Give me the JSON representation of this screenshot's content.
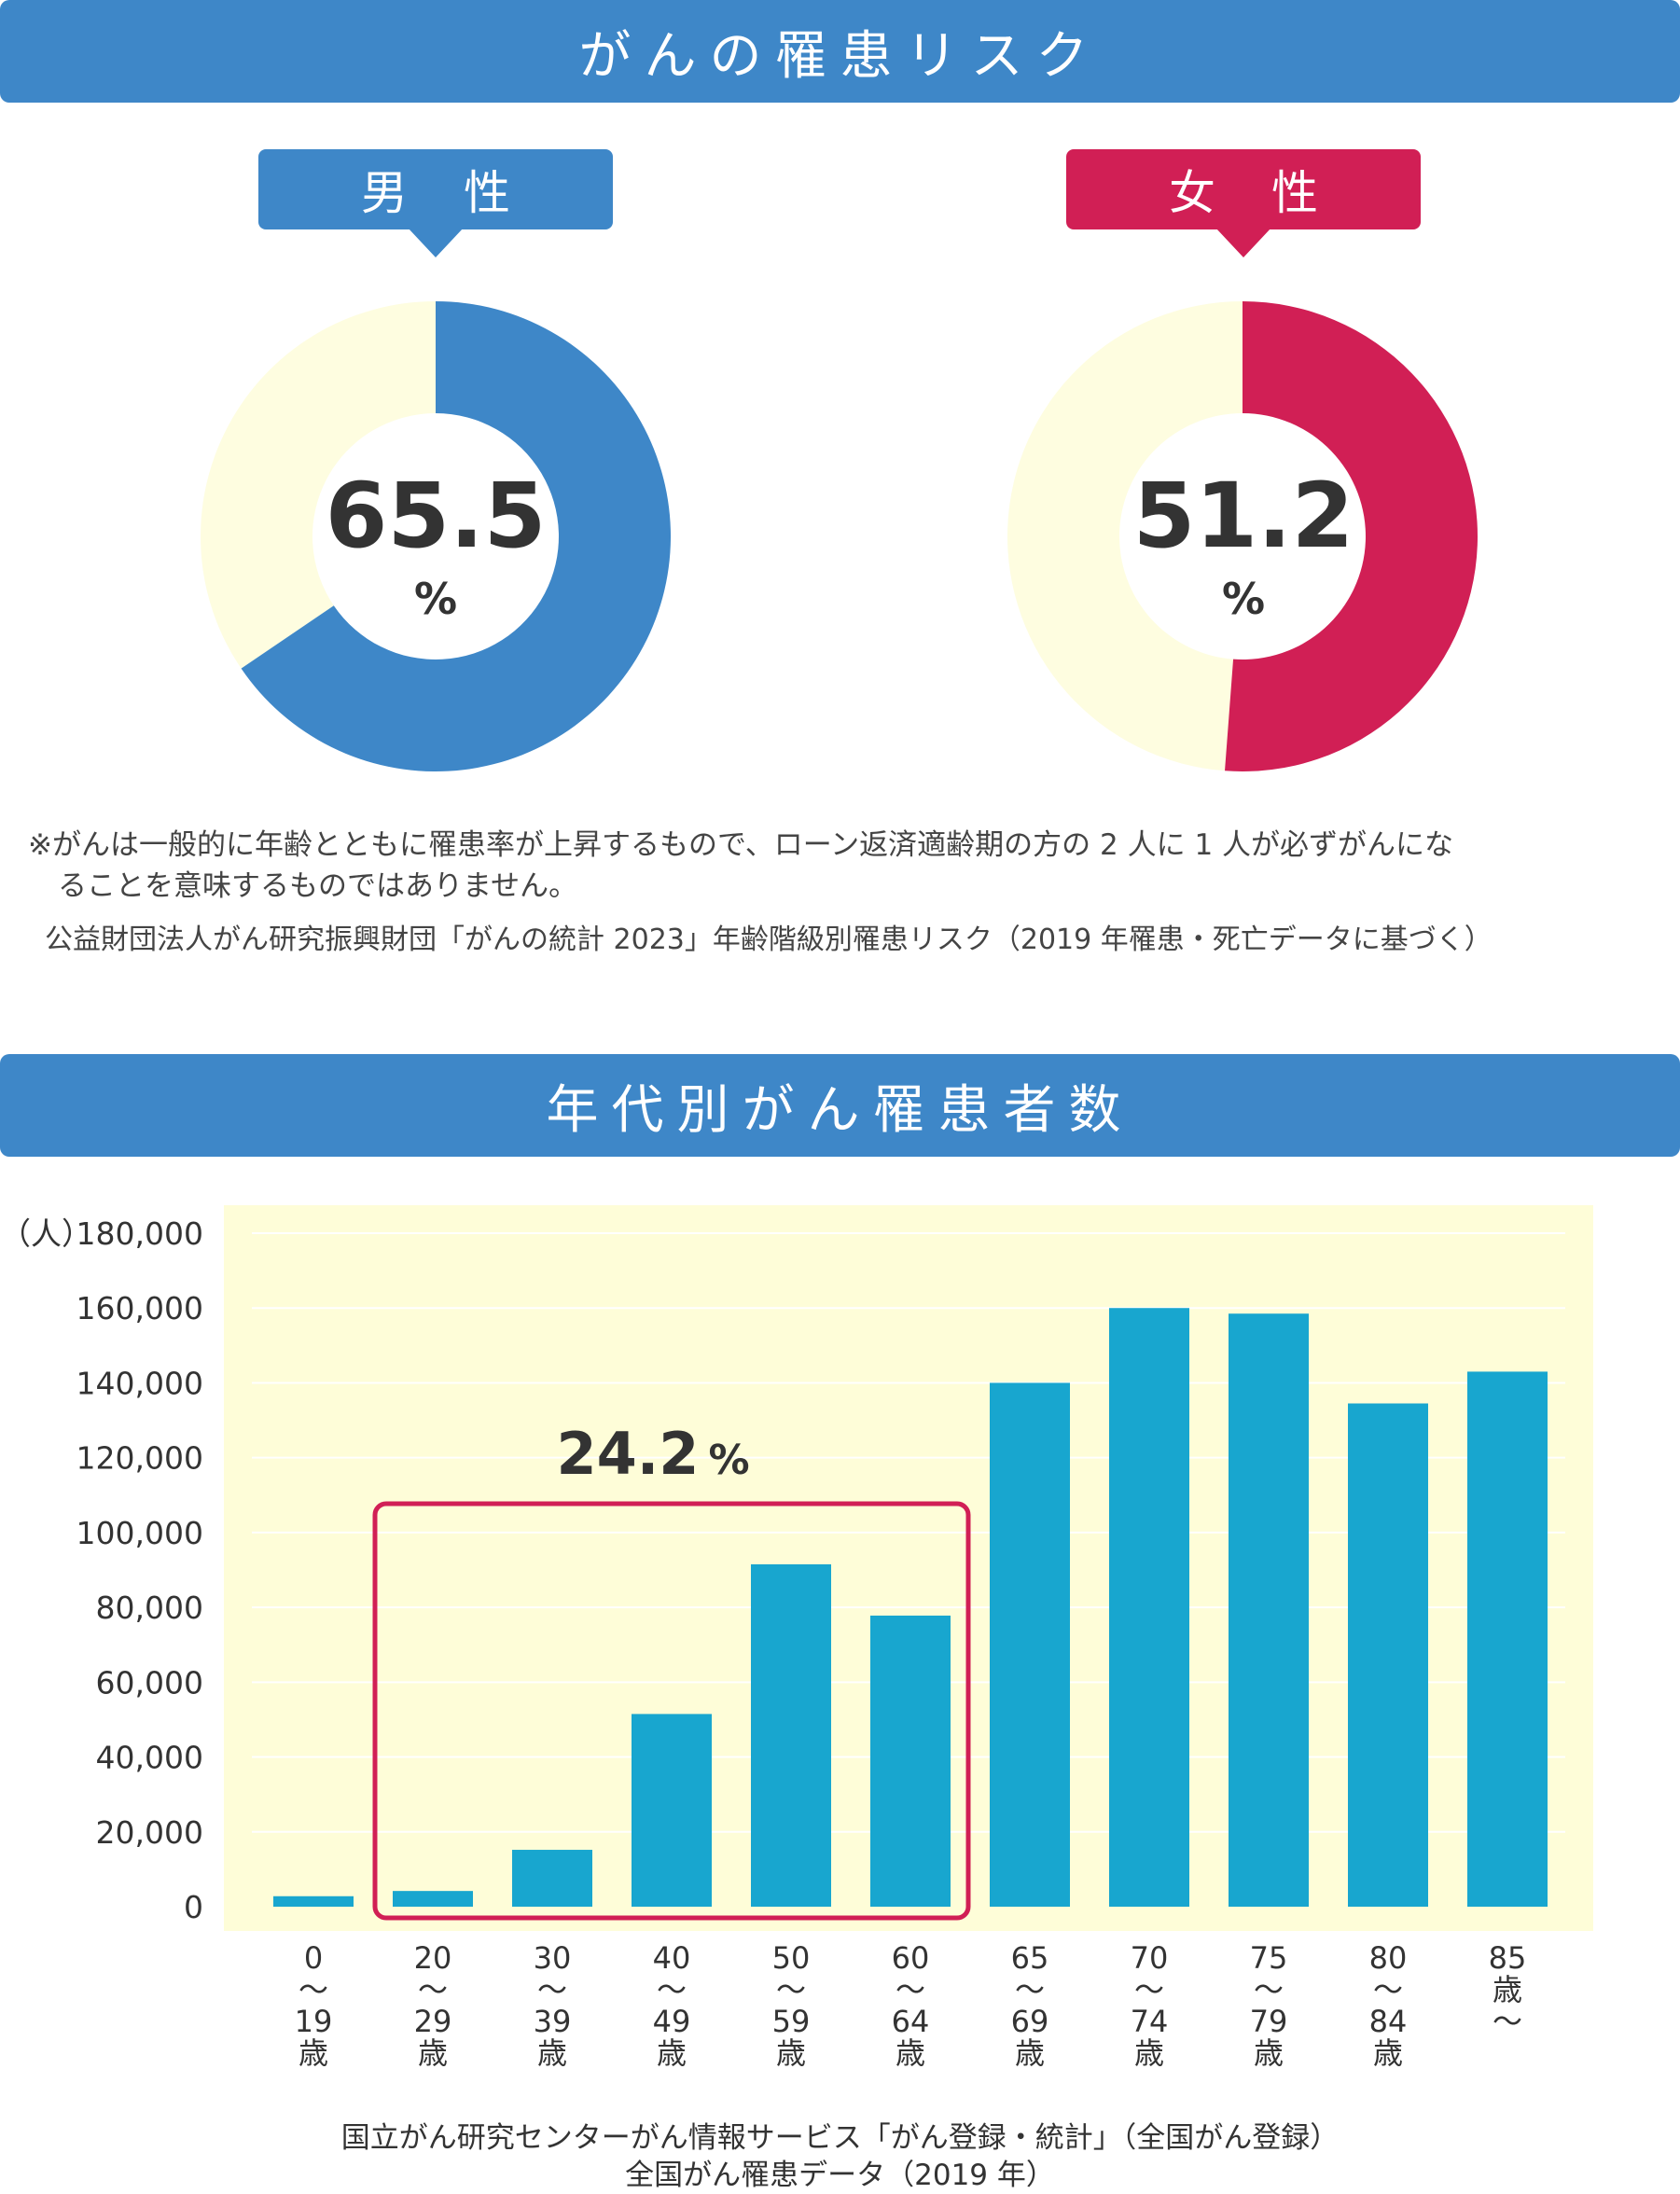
{
  "risk": {
    "title": "がんの罹患リスク",
    "male": {
      "label": "男性",
      "value": "65.5",
      "unit": "%",
      "color": "#3e87c8"
    },
    "female": {
      "label": "女性",
      "value": "51.2",
      "unit": "%",
      "color": "#d11f55"
    },
    "donut_rest_color": "#fefde0",
    "note_line1": "※がんは一般的に年齢とともに罹患率が上昇するもので、ローン返済適齢期の方の 2 人に 1 人が必ずがんにな",
    "note_line2": "ることを意味するものではありません。",
    "source": "公益財団法人がん研究振興財団「がんの統計 2023」年齢階級別罹患リスク（2019 年罹患・死亡データに基づく）"
  },
  "chart_section": {
    "title": "年代別がん罹患者数",
    "source_line1": "国立がん研究センターがん情報サービス「がん登録・統計」（全国がん登録）",
    "source_line2": "全国がん罹患データ（2019 年）"
  },
  "chart_data": [
    {
      "type": "pie",
      "categories": [
        "男性",
        "残り"
      ],
      "values": [
        65.5,
        34.5
      ],
      "center_label": "65.5 %"
    },
    {
      "type": "pie",
      "categories": [
        "女性",
        "残り"
      ],
      "values": [
        51.2,
        48.8
      ],
      "center_label": "51.2 %"
    },
    {
      "type": "bar",
      "ylabel": "（人）",
      "ylim": [
        0,
        180000
      ],
      "yticks": [
        0,
        20000,
        40000,
        60000,
        80000,
        100000,
        120000,
        140000,
        160000,
        180000
      ],
      "ytick_labels": [
        "0",
        "20,000",
        "40,000",
        "60,000",
        "80,000",
        "100,000",
        "120,000",
        "140,000",
        "160,000",
        "180,000"
      ],
      "categories": [
        [
          "0",
          "〜",
          "19",
          "歳"
        ],
        [
          "20",
          "〜",
          "29",
          "歳"
        ],
        [
          "30",
          "〜",
          "39",
          "歳"
        ],
        [
          "40",
          "〜",
          "49",
          "歳"
        ],
        [
          "50",
          "〜",
          "59",
          "歳"
        ],
        [
          "60",
          "〜",
          "64",
          "歳"
        ],
        [
          "65",
          "〜",
          "69",
          "歳"
        ],
        [
          "70",
          "〜",
          "74",
          "歳"
        ],
        [
          "75",
          "〜",
          "79",
          "歳"
        ],
        [
          "80",
          "〜",
          "84",
          "歳"
        ],
        [
          "85",
          "歳",
          "〜"
        ]
      ],
      "values": [
        2800,
        4200,
        15200,
        51500,
        91500,
        77800,
        140000,
        160000,
        158500,
        134500,
        143000
      ],
      "bar_color": "#18a6cf",
      "background_color": "#fefdd8",
      "grid": true,
      "highlight": {
        "from_index": 1,
        "to_index": 5,
        "label": "24.2",
        "unit": "%",
        "color": "#d11f55"
      }
    }
  ]
}
